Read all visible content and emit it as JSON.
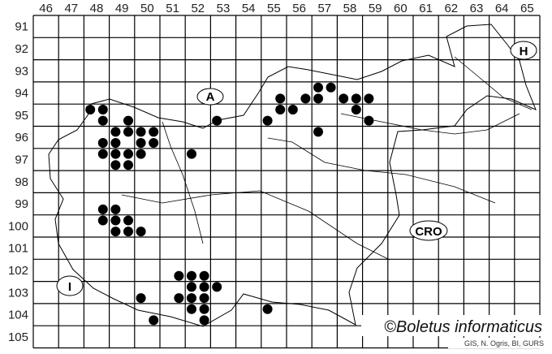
{
  "map": {
    "columns": [
      "46",
      "47",
      "48",
      "49",
      "50",
      "51",
      "52",
      "53",
      "54",
      "55",
      "56",
      "57",
      "58",
      "59",
      "60",
      "61",
      "62",
      "63",
      "64",
      "65"
    ],
    "rows": [
      "91",
      "92",
      "93",
      "94",
      "95",
      "96",
      "97",
      "98",
      "99",
      "100",
      "101",
      "102",
      "103",
      "104",
      "105"
    ],
    "country_labels": [
      {
        "code": "A"
      },
      {
        "code": "H"
      },
      {
        "code": "CRO"
      },
      {
        "code": "I"
      }
    ],
    "dot_color": "#000000",
    "records": [
      {
        "x": 48.25,
        "y": 95.25
      },
      {
        "x": 48.75,
        "y": 95.25
      },
      {
        "x": 48.75,
        "y": 95.75
      },
      {
        "x": 49.75,
        "y": 95.75
      },
      {
        "x": 49.25,
        "y": 96.25
      },
      {
        "x": 49.75,
        "y": 96.25
      },
      {
        "x": 50.25,
        "y": 96.25
      },
      {
        "x": 50.75,
        "y": 96.25
      },
      {
        "x": 48.75,
        "y": 96.75
      },
      {
        "x": 49.25,
        "y": 96.75
      },
      {
        "x": 50.25,
        "y": 96.75
      },
      {
        "x": 50.75,
        "y": 96.75
      },
      {
        "x": 48.75,
        "y": 97.25
      },
      {
        "x": 49.25,
        "y": 97.25
      },
      {
        "x": 49.75,
        "y": 97.25
      },
      {
        "x": 50.25,
        "y": 97.25
      },
      {
        "x": 49.25,
        "y": 97.75
      },
      {
        "x": 49.75,
        "y": 97.75
      },
      {
        "x": 52.25,
        "y": 97.25
      },
      {
        "x": 53.25,
        "y": 95.75
      },
      {
        "x": 55.25,
        "y": 95.75
      },
      {
        "x": 55.75,
        "y": 94.75
      },
      {
        "x": 55.75,
        "y": 95.25
      },
      {
        "x": 56.25,
        "y": 95.25
      },
      {
        "x": 56.75,
        "y": 94.75
      },
      {
        "x": 57.25,
        "y": 94.25
      },
      {
        "x": 57.25,
        "y": 94.75
      },
      {
        "x": 57.75,
        "y": 94.25
      },
      {
        "x": 58.25,
        "y": 94.75
      },
      {
        "x": 58.75,
        "y": 94.75
      },
      {
        "x": 58.75,
        "y": 95.25
      },
      {
        "x": 59.25,
        "y": 94.75
      },
      {
        "x": 59.25,
        "y": 95.75
      },
      {
        "x": 57.25,
        "y": 96.25
      },
      {
        "x": 48.75,
        "y": 99.75
      },
      {
        "x": 49.25,
        "y": 99.75
      },
      {
        "x": 48.75,
        "y": 100.25
      },
      {
        "x": 49.25,
        "y": 100.25
      },
      {
        "x": 49.75,
        "y": 100.25
      },
      {
        "x": 49.25,
        "y": 100.75
      },
      {
        "x": 49.75,
        "y": 100.75
      },
      {
        "x": 50.25,
        "y": 100.75
      },
      {
        "x": 51.75,
        "y": 102.75
      },
      {
        "x": 52.25,
        "y": 102.75
      },
      {
        "x": 52.75,
        "y": 102.75
      },
      {
        "x": 52.25,
        "y": 103.25
      },
      {
        "x": 52.75,
        "y": 103.25
      },
      {
        "x": 53.25,
        "y": 103.25
      },
      {
        "x": 50.25,
        "y": 103.75
      },
      {
        "x": 51.75,
        "y": 103.75
      },
      {
        "x": 52.25,
        "y": 103.75
      },
      {
        "x": 52.75,
        "y": 103.75
      },
      {
        "x": 52.25,
        "y": 104.25
      },
      {
        "x": 52.75,
        "y": 104.25
      },
      {
        "x": 55.25,
        "y": 104.25
      },
      {
        "x": 50.75,
        "y": 104.75
      },
      {
        "x": 52.75,
        "y": 104.75
      }
    ]
  },
  "copyright": "©Boletus informaticus",
  "credit": "GIS, N. Ogris, BI, GURS"
}
